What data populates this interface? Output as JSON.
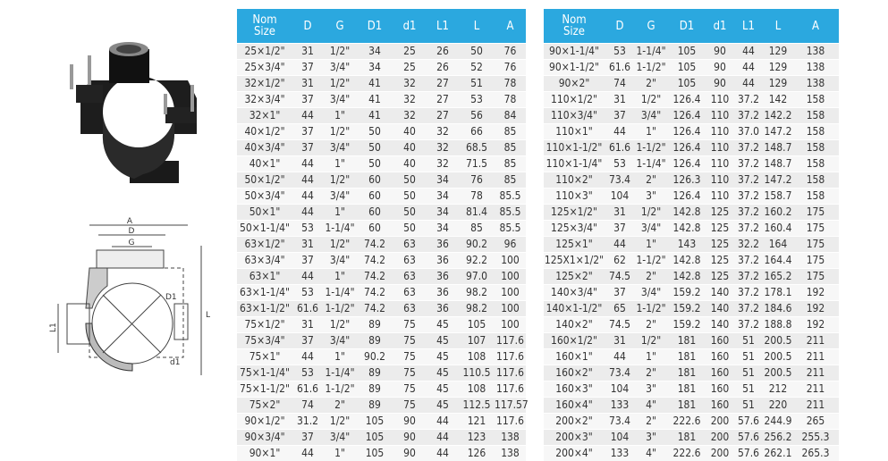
{
  "tables": [
    {
      "headers": [
        "Nom\nSize",
        "D",
        "G",
        "D1",
        "d1",
        "L1",
        "L",
        "A"
      ],
      "rows": [
        [
          "25×1/2\"",
          "31",
          "1/2\"",
          "34",
          "25",
          "26",
          "50",
          "76"
        ],
        [
          "25×3/4\"",
          "37",
          "3/4\"",
          "34",
          "25",
          "26",
          "52",
          "76"
        ],
        [
          "32×1/2\"",
          "31",
          "1/2\"",
          "41",
          "32",
          "27",
          "51",
          "78"
        ],
        [
          "32×3/4\"",
          "37",
          "3/4\"",
          "41",
          "32",
          "27",
          "53",
          "78"
        ],
        [
          "32×1\"",
          "44",
          "1\"",
          "41",
          "32",
          "27",
          "56",
          "84"
        ],
        [
          "40×1/2\"",
          "37",
          "1/2\"",
          "50",
          "40",
          "32",
          "66",
          "85"
        ],
        [
          "40×3/4\"",
          "37",
          "3/4\"",
          "50",
          "40",
          "32",
          "68.5",
          "85"
        ],
        [
          "40×1\"",
          "44",
          "1\"",
          "50",
          "40",
          "32",
          "71.5",
          "85"
        ],
        [
          "50×1/2\"",
          "44",
          "1/2\"",
          "60",
          "50",
          "34",
          "76",
          "85"
        ],
        [
          "50×3/4\"",
          "44",
          "3/4\"",
          "60",
          "50",
          "34",
          "78",
          "85.5"
        ],
        [
          "50×1\"",
          "44",
          "1\"",
          "60",
          "50",
          "34",
          "81.4",
          "85.5"
        ],
        [
          "50×1-1/4\"",
          "53",
          "1-1/4\"",
          "60",
          "50",
          "34",
          "85",
          "85.5"
        ],
        [
          "63×1/2\"",
          "31",
          "1/2\"",
          "74.2",
          "63",
          "36",
          "90.2",
          "96"
        ],
        [
          "63×3/4\"",
          "37",
          "3/4\"",
          "74.2",
          "63",
          "36",
          "92.2",
          "100"
        ],
        [
          "63×1\"",
          "44",
          "1\"",
          "74.2",
          "63",
          "36",
          "97.0",
          "100"
        ],
        [
          "63×1-1/4\"",
          "53",
          "1-1/4\"",
          "74.2",
          "63",
          "36",
          "98.2",
          "100"
        ],
        [
          "63×1-1/2\"",
          "61.6",
          "1-1/2\"",
          "74.2",
          "63",
          "36",
          "98.2",
          "100"
        ],
        [
          "75×1/2\"",
          "31",
          "1/2\"",
          "89",
          "75",
          "45",
          "105",
          "100"
        ],
        [
          "75×3/4\"",
          "37",
          "3/4\"",
          "89",
          "75",
          "45",
          "107",
          "117.6"
        ],
        [
          "75×1\"",
          "44",
          "1\"",
          "90.2",
          "75",
          "45",
          "108",
          "117.6"
        ],
        [
          "75×1-1/4\"",
          "53",
          "1-1/4\"",
          "89",
          "75",
          "45",
          "110.5",
          "117.6"
        ],
        [
          "75×1-1/2\"",
          "61.6",
          "1-1/2\"",
          "89",
          "75",
          "45",
          "108",
          "117.6"
        ],
        [
          "75×2\"",
          "74",
          "2\"",
          "89",
          "75",
          "45",
          "112.5",
          "117.57"
        ],
        [
          "90×1/2\"",
          "31.2",
          "1/2\"",
          "105",
          "90",
          "44",
          "121",
          "117.6"
        ],
        [
          "90×3/4\"",
          "37",
          "3/4\"",
          "105",
          "90",
          "44",
          "123",
          "138"
        ],
        [
          "90×1\"",
          "44",
          "1\"",
          "105",
          "90",
          "44",
          "126",
          "138"
        ]
      ]
    },
    {
      "headers": [
        "Nom\nSize",
        "D",
        "G",
        "D1",
        "d1",
        "L1",
        "L",
        "A"
      ],
      "rows": [
        [
          "90×1-1/4\"",
          "53",
          "1-1/4\"",
          "105",
          "90",
          "44",
          "129",
          "138"
        ],
        [
          "90×1-1/2\"",
          "61.6",
          "1-1/2\"",
          "105",
          "90",
          "44",
          "129",
          "138"
        ],
        [
          "90×2\"",
          "74",
          "2\"",
          "105",
          "90",
          "44",
          "129",
          "138"
        ],
        [
          "110×1/2\"",
          "31",
          "1/2\"",
          "126.4",
          "110",
          "37.2",
          "142",
          "158"
        ],
        [
          "110×3/4\"",
          "37",
          "3/4\"",
          "126.4",
          "110",
          "37.2",
          "142.2",
          "158"
        ],
        [
          "110×1\"",
          "44",
          "1\"",
          "126.4",
          "110",
          "37.0",
          "147.2",
          "158"
        ],
        [
          "110×1-1/2\"",
          "61.6",
          "1-1/2\"",
          "126.4",
          "110",
          "37.2",
          "148.7",
          "158"
        ],
        [
          "110×1-1/4\"",
          "53",
          "1-1/4\"",
          "126.4",
          "110",
          "37.2",
          "148.7",
          "158"
        ],
        [
          "110×2\"",
          "73.4",
          "2\"",
          "126.3",
          "110",
          "37.2",
          "147.2",
          "158"
        ],
        [
          "110×3\"",
          "104",
          "3\"",
          "126.4",
          "110",
          "37.2",
          "158.7",
          "158"
        ],
        [
          "125×1/2\"",
          "31",
          "1/2\"",
          "142.8",
          "125",
          "37.2",
          "160.2",
          "175"
        ],
        [
          "125×3/4\"",
          "37",
          "3/4\"",
          "142.8",
          "125",
          "37.2",
          "160.4",
          "175"
        ],
        [
          "125×1\"",
          "44",
          "1\"",
          "143",
          "125",
          "32.2",
          "164",
          "175"
        ],
        [
          "125X1×1/2\"",
          "62",
          "1-1/2\"",
          "142.8",
          "125",
          "37.2",
          "164.4",
          "175"
        ],
        [
          "125×2\"",
          "74.5",
          "2\"",
          "142.8",
          "125",
          "37.2",
          "165.2",
          "175"
        ],
        [
          "140×3/4\"",
          "37",
          "3/4\"",
          "159.2",
          "140",
          "37.2",
          "178.1",
          "192"
        ],
        [
          "140×1-1/2\"",
          "65",
          "1-1/2\"",
          "159.2",
          "140",
          "37.2",
          "184.6",
          "192"
        ],
        [
          "140×2\"",
          "74.5",
          "2\"",
          "159.2",
          "140",
          "37.2",
          "188.8",
          "192"
        ],
        [
          "160×1/2\"",
          "31",
          "1/2\"",
          "181",
          "160",
          "51",
          "200.5",
          "211"
        ],
        [
          "160×1\"",
          "44",
          "1\"",
          "181",
          "160",
          "51",
          "200.5",
          "211"
        ],
        [
          "160×2\"",
          "73.4",
          "2\"",
          "181",
          "160",
          "51",
          "200.5",
          "211"
        ],
        [
          "160×3\"",
          "104",
          "3\"",
          "181",
          "160",
          "51",
          "212",
          "211"
        ],
        [
          "160×4\"",
          "133",
          "4\"",
          "181",
          "160",
          "51",
          "220",
          "211"
        ],
        [
          "200×2\"",
          "73.4",
          "2\"",
          "222.6",
          "200",
          "57.6",
          "244.9",
          "265"
        ],
        [
          "200×3\"",
          "104",
          "3\"",
          "181",
          "200",
          "57.6",
          "256.2",
          "255.3"
        ],
        [
          "200×4\"",
          "133",
          "4\"",
          "222.6",
          "200",
          "57.6",
          "262.1",
          "265.3"
        ]
      ]
    }
  ],
  "drawing": {
    "A": "A",
    "D": "D",
    "G": "G",
    "D1": "D1",
    "L1": "L1",
    "L": "L",
    "d1": "d1"
  }
}
